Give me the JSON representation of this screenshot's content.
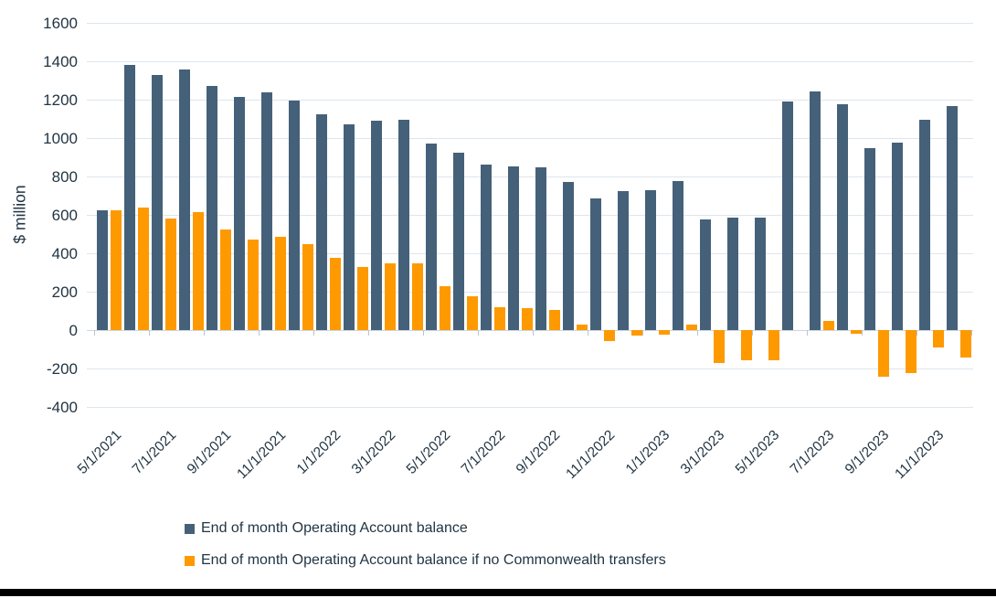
{
  "colors": {
    "series_blue": "#456179",
    "series_orange": "#FE9900",
    "text": "#223543",
    "gridline": "#dde6ee",
    "zero_line": "#ccd7e0",
    "tick": "#b8c5cf",
    "bottom_bar": "#000000",
    "background": "#ffffff"
  },
  "chart_data": {
    "type": "bar",
    "title": "",
    "xlabel": "",
    "ylabel": "$ million",
    "ylim": [
      -400,
      1600
    ],
    "ytick_step": 200,
    "grid": true,
    "legend_position": "bottom-left",
    "y_tick_labels": [
      "1600",
      "1400",
      "1200",
      "1000",
      "800",
      "600",
      "400",
      "200",
      "0",
      "-200",
      "-400"
    ],
    "x_tick_labels": [
      "5/1/2021",
      "7/1/2021",
      "9/1/2021",
      "11/1/2021",
      "1/1/2022",
      "3/1/2022",
      "5/1/2022",
      "7/1/2022",
      "9/1/2022",
      "11/1/2022",
      "1/1/2023",
      "3/1/2023",
      "5/1/2023",
      "7/1/2023",
      "9/1/2023",
      "11/1/2023"
    ],
    "categories": [
      "5/1/2021",
      "6/1/2021",
      "7/1/2021",
      "8/1/2021",
      "9/1/2021",
      "10/1/2021",
      "11/1/2021",
      "12/1/2021",
      "1/1/2022",
      "2/1/2022",
      "3/1/2022",
      "4/1/2022",
      "5/1/2022",
      "6/1/2022",
      "7/1/2022",
      "8/1/2022",
      "9/1/2022",
      "10/1/2022",
      "11/1/2022",
      "12/1/2022",
      "1/1/2023",
      "2/1/2023",
      "3/1/2023",
      "4/1/2023",
      "5/1/2023",
      "6/1/2023",
      "7/1/2023",
      "8/1/2023",
      "9/1/2023",
      "10/1/2023",
      "11/1/2023",
      "12/1/2023"
    ],
    "series": [
      {
        "name": "End of month Operating Account balance",
        "color": "#456179",
        "values": [
          625,
          1385,
          1330,
          1360,
          1275,
          1220,
          1240,
          1200,
          1125,
          1075,
          1095,
          1100,
          975,
          925,
          865,
          855,
          850,
          775,
          690,
          725,
          730,
          780,
          580,
          590,
          590,
          1195,
          1245,
          1180,
          950,
          980,
          1100,
          1170
        ]
      },
      {
        "name": "End of month Operating Account balance if no Commonwealth transfers",
        "color": "#FE9900",
        "values": [
          625,
          640,
          585,
          615,
          525,
          475,
          490,
          450,
          380,
          330,
          350,
          350,
          230,
          180,
          120,
          115,
          105,
          30,
          -55,
          -25,
          -20,
          30,
          -170,
          -155,
          -155,
          0,
          50,
          -15,
          -240,
          -220,
          -90,
          -140
        ]
      }
    ]
  }
}
